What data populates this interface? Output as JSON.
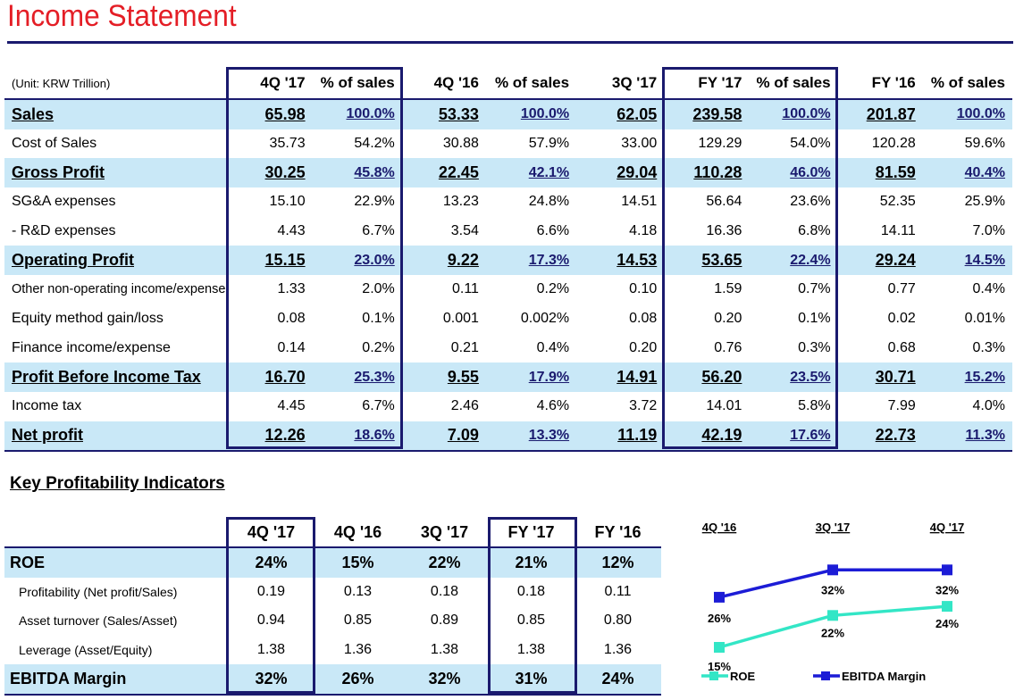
{
  "title": "Income Statement",
  "income": {
    "unit": "(Unit: KRW Trillion)",
    "headers": [
      "4Q '17",
      "% of sales",
      "4Q '16",
      "% of sales",
      "3Q '17",
      "FY '17",
      "% of sales",
      "FY '16",
      "% of sales"
    ],
    "rows": [
      {
        "label": "Sales",
        "values": [
          "65.98",
          "100.0%",
          "53.33",
          "100.0%",
          "62.05",
          "239.58",
          "100.0%",
          "201.87",
          "100.0%"
        ],
        "highlight": true
      },
      {
        "label": "Cost of Sales",
        "values": [
          "35.73",
          "54.2%",
          "30.88",
          "57.9%",
          "33.00",
          "129.29",
          "54.0%",
          "120.28",
          "59.6%"
        ],
        "highlight": false
      },
      {
        "label": "Gross Profit",
        "values": [
          "30.25",
          "45.8%",
          "22.45",
          "42.1%",
          "29.04",
          "110.28",
          "46.0%",
          "81.59",
          "40.4%"
        ],
        "highlight": true
      },
      {
        "label": "SG&A expenses",
        "values": [
          "15.10",
          "22.9%",
          "13.23",
          "24.8%",
          "14.51",
          "56.64",
          "23.6%",
          "52.35",
          "25.9%"
        ],
        "highlight": false
      },
      {
        "label": " - R&D expenses",
        "values": [
          "4.43",
          "6.7%",
          "3.54",
          "6.6%",
          "4.18",
          "16.36",
          "6.8%",
          "14.11",
          "7.0%"
        ],
        "highlight": false
      },
      {
        "label": "Operating Profit",
        "values": [
          "15.15",
          "23.0%",
          "9.22",
          "17.3%",
          "14.53",
          "53.65",
          "22.4%",
          "29.24",
          "14.5%"
        ],
        "highlight": true
      },
      {
        "label": "Other non-operating income/expense",
        "values": [
          "1.33",
          "2.0%",
          "0.11",
          "0.2%",
          "0.10",
          "1.59",
          "0.7%",
          "0.77",
          "0.4%"
        ],
        "highlight": false
      },
      {
        "label": "Equity method gain/loss",
        "values": [
          "0.08",
          "0.1%",
          "0.001",
          "0.002%",
          "0.08",
          "0.20",
          "0.1%",
          "0.02",
          "0.01%"
        ],
        "highlight": false
      },
      {
        "label": "Finance income/expense",
        "values": [
          "0.14",
          "0.2%",
          "0.21",
          "0.4%",
          "0.20",
          "0.76",
          "0.3%",
          "0.68",
          "0.3%"
        ],
        "highlight": false
      },
      {
        "label": "Profit Before Income Tax",
        "values": [
          "16.70",
          "25.3%",
          "9.55",
          "17.9%",
          "14.91",
          "56.20",
          "23.5%",
          "30.71",
          "15.2%"
        ],
        "highlight": true
      },
      {
        "label": "Income tax",
        "values": [
          "4.45",
          "6.7%",
          "2.46",
          "4.6%",
          "3.72",
          "14.01",
          "5.8%",
          "7.99",
          "4.0%"
        ],
        "highlight": false
      },
      {
        "label": "Net profit",
        "values": [
          "12.26",
          "18.6%",
          "7.09",
          "13.3%",
          "11.19",
          "42.19",
          "17.6%",
          "22.73",
          "11.3%"
        ],
        "highlight": true
      }
    ]
  },
  "kpi": {
    "title": "Key Profitability Indicators",
    "headers": [
      "4Q '17",
      "4Q '16",
      "3Q '17",
      "FY '17",
      "FY '16"
    ],
    "rows": [
      {
        "label": "ROE",
        "values": [
          "24%",
          "15%",
          "22%",
          "21%",
          "12%"
        ],
        "highlight": true
      },
      {
        "label": "Profitability (Net profit/Sales)",
        "values": [
          "0.19",
          "0.13",
          "0.18",
          "0.18",
          "0.11"
        ],
        "highlight": false
      },
      {
        "label": "Asset turnover (Sales/Asset)",
        "values": [
          "0.94",
          "0.85",
          "0.89",
          "0.85",
          "0.80"
        ],
        "highlight": false
      },
      {
        "label": "Leverage (Asset/Equity)",
        "values": [
          "1.38",
          "1.36",
          "1.38",
          "1.38",
          "1.36"
        ],
        "highlight": false
      },
      {
        "label": "EBITDA Margin",
        "values": [
          "32%",
          "26%",
          "32%",
          "31%",
          "24%"
        ],
        "highlight": true
      }
    ]
  },
  "chart_data": {
    "type": "line",
    "categories": [
      "4Q '16",
      "3Q '17",
      "4Q '17"
    ],
    "series": [
      {
        "name": "ROE",
        "values": [
          15,
          22,
          24
        ],
        "labels": [
          "15%",
          "22%",
          "24%"
        ],
        "color": "#33e6c6"
      },
      {
        "name": "EBITDA Margin",
        "values": [
          26,
          32,
          32
        ],
        "labels": [
          "26%",
          "32%",
          "32%"
        ],
        "color": "#1c1cd6"
      }
    ]
  }
}
